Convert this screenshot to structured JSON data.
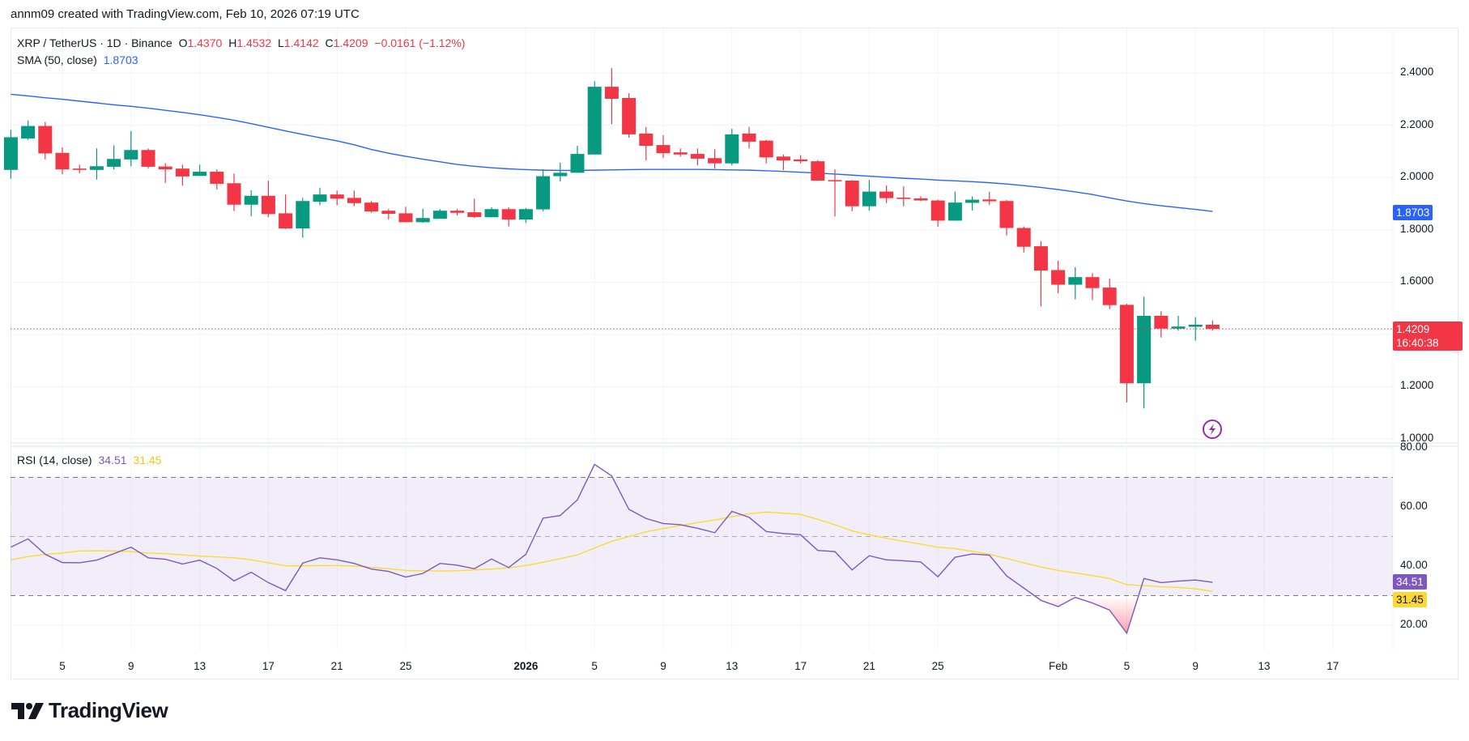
{
  "header": {
    "credit": "annm09 created with TradingView.com, Feb 10, 2026 07:19 UTC"
  },
  "legend": {
    "symbol": "XRP / TetherUS · 1D · Binance",
    "o_label": "O",
    "o": "1.4370",
    "h_label": "H",
    "h": "1.4532",
    "l_label": "L",
    "l": "1.4142",
    "c_label": "C",
    "c": "1.4209",
    "change": "−0.0161 (−1.12%)",
    "sma_label": "SMA (50, close)",
    "sma_value": "1.8703",
    "rsi_label": "RSI (14, close)",
    "rsi_value": "34.51",
    "rsi_ma_value": "31.45"
  },
  "price_tags": {
    "sma": "1.8703",
    "last": "1.4209",
    "countdown": "16:40:38",
    "rsi": "34.51",
    "rsi_ma": "31.45"
  },
  "icons": {
    "alert": "lightning-bolt-icon",
    "logo": "tradingview-logo"
  },
  "logo": {
    "text": "TradingView"
  },
  "colors": {
    "up": "#089981",
    "down": "#f23645",
    "sma": "#2962ff",
    "rsi": "#7e57c2",
    "rsi_ma": "#fdd835",
    "alert": "#9c27b0"
  },
  "chart_data": [
    {
      "type": "candlestick",
      "title": "XRP / TetherUS · 1D · Binance",
      "ylim": [
        1.0,
        2.4
      ],
      "yticks": [
        "2.4000",
        "2.2000",
        "2.0000",
        "1.8000",
        "1.6000",
        "1.2000",
        "1.0000"
      ],
      "xticks": [
        {
          "label": "5",
          "date": "2025-12-05"
        },
        {
          "label": "9",
          "date": "2025-12-09"
        },
        {
          "label": "13",
          "date": "2025-12-13"
        },
        {
          "label": "17",
          "date": "2025-12-17"
        },
        {
          "label": "21",
          "date": "2025-12-21"
        },
        {
          "label": "25",
          "date": "2025-12-25"
        },
        {
          "label": "2026",
          "date": "2026-01-01",
          "bold": true
        },
        {
          "label": "5",
          "date": "2026-01-05"
        },
        {
          "label": "9",
          "date": "2026-01-09"
        },
        {
          "label": "13",
          "date": "2026-01-13"
        },
        {
          "label": "17",
          "date": "2026-01-17"
        },
        {
          "label": "21",
          "date": "2026-01-21"
        },
        {
          "label": "25",
          "date": "2026-01-25"
        },
        {
          "label": "Feb",
          "date": "2026-02-01"
        },
        {
          "label": "5",
          "date": "2026-02-05"
        },
        {
          "label": "9",
          "date": "2026-02-09"
        },
        {
          "label": "13",
          "date": "2026-02-13"
        },
        {
          "label": "17",
          "date": "2026-02-17"
        }
      ],
      "grid": true,
      "start_date": "2025-12-02",
      "ohlc": [
        [
          2.029,
          2.182,
          1.995,
          2.154
        ],
        [
          2.149,
          2.218,
          2.144,
          2.197
        ],
        [
          2.197,
          2.212,
          2.069,
          2.092
        ],
        [
          2.094,
          2.115,
          2.012,
          2.031
        ],
        [
          2.034,
          2.049,
          2.016,
          2.029
        ],
        [
          2.029,
          2.111,
          1.992,
          2.043
        ],
        [
          2.041,
          2.123,
          2.031,
          2.071
        ],
        [
          2.069,
          2.178,
          2.043,
          2.105
        ],
        [
          2.105,
          2.111,
          2.034,
          2.041
        ],
        [
          2.042,
          2.055,
          1.979,
          2.031
        ],
        [
          2.034,
          2.049,
          1.969,
          2.004
        ],
        [
          2.006,
          2.049,
          2.006,
          2.022
        ],
        [
          2.022,
          2.031,
          1.954,
          1.976
        ],
        [
          1.978,
          2.015,
          1.872,
          1.896
        ],
        [
          1.896,
          1.951,
          1.852,
          1.93
        ],
        [
          1.93,
          1.988,
          1.848,
          1.86
        ],
        [
          1.863,
          1.935,
          1.803,
          1.805
        ],
        [
          1.805,
          1.922,
          1.77,
          1.91
        ],
        [
          1.907,
          1.961,
          1.894,
          1.935
        ],
        [
          1.935,
          1.95,
          1.894,
          1.919
        ],
        [
          1.922,
          1.95,
          1.891,
          1.902
        ],
        [
          1.904,
          1.91,
          1.865,
          1.87
        ],
        [
          1.873,
          1.879,
          1.839,
          1.861
        ],
        [
          1.863,
          1.888,
          1.829,
          1.829
        ],
        [
          1.829,
          1.881,
          1.827,
          1.845
        ],
        [
          1.842,
          1.879,
          1.842,
          1.873
        ],
        [
          1.873,
          1.879,
          1.855,
          1.865
        ],
        [
          1.867,
          1.919,
          1.845,
          1.849
        ],
        [
          1.848,
          1.886,
          1.848,
          1.879
        ],
        [
          1.879,
          1.886,
          1.813,
          1.839
        ],
        [
          1.839,
          1.883,
          1.827,
          1.879
        ],
        [
          1.878,
          2.031,
          1.871,
          2.005
        ],
        [
          2.005,
          2.057,
          1.985,
          2.018
        ],
        [
          2.018,
          2.121,
          2.018,
          2.09
        ],
        [
          2.088,
          2.368,
          2.088,
          2.347
        ],
        [
          2.347,
          2.418,
          2.204,
          2.301
        ],
        [
          2.304,
          2.322,
          2.152,
          2.165
        ],
        [
          2.168,
          2.193,
          2.065,
          2.121
        ],
        [
          2.124,
          2.162,
          2.075,
          2.093
        ],
        [
          2.096,
          2.111,
          2.08,
          2.088
        ],
        [
          2.09,
          2.111,
          2.046,
          2.072
        ],
        [
          2.074,
          2.108,
          2.034,
          2.054
        ],
        [
          2.054,
          2.186,
          2.046,
          2.165
        ],
        [
          2.168,
          2.193,
          2.111,
          2.137
        ],
        [
          2.141,
          2.144,
          2.054,
          2.077
        ],
        [
          2.08,
          2.088,
          2.028,
          2.065
        ],
        [
          2.069,
          2.085,
          2.054,
          2.062
        ],
        [
          2.062,
          2.067,
          1.988,
          1.988
        ],
        [
          1.99,
          2.031,
          1.851,
          1.986
        ],
        [
          1.988,
          1.99,
          1.871,
          1.89
        ],
        [
          1.89,
          1.99,
          1.874,
          1.946
        ],
        [
          1.946,
          1.969,
          1.902,
          1.921
        ],
        [
          1.923,
          1.966,
          1.89,
          1.918
        ],
        [
          1.92,
          1.928,
          1.91,
          1.912
        ],
        [
          1.912,
          1.915,
          1.812,
          1.835
        ],
        [
          1.835,
          1.946,
          1.835,
          1.904
        ],
        [
          1.903,
          1.928,
          1.874,
          1.915
        ],
        [
          1.916,
          1.945,
          1.895,
          1.909
        ],
        [
          1.91,
          1.914,
          1.778,
          1.807
        ],
        [
          1.807,
          1.813,
          1.713,
          1.735
        ],
        [
          1.737,
          1.756,
          1.507,
          1.644
        ],
        [
          1.646,
          1.682,
          1.557,
          1.59
        ],
        [
          1.59,
          1.657,
          1.534,
          1.619
        ],
        [
          1.619,
          1.634,
          1.531,
          1.577
        ],
        [
          1.579,
          1.613,
          1.497,
          1.512
        ],
        [
          1.513,
          1.517,
          1.14,
          1.213
        ],
        [
          1.213,
          1.544,
          1.117,
          1.471
        ],
        [
          1.471,
          1.489,
          1.388,
          1.422
        ],
        [
          1.422,
          1.471,
          1.414,
          1.43
        ],
        [
          1.429,
          1.466,
          1.376,
          1.437
        ],
        [
          1.437,
          1.4532,
          1.4142,
          1.4209
        ]
      ],
      "sma": [
        2.318,
        2.312,
        2.305,
        2.299,
        2.292,
        2.285,
        2.278,
        2.272,
        2.265,
        2.257,
        2.249,
        2.24,
        2.23,
        2.219,
        2.206,
        2.192,
        2.178,
        2.165,
        2.152,
        2.14,
        2.125,
        2.107,
        2.093,
        2.081,
        2.07,
        2.06,
        2.05,
        2.043,
        2.037,
        2.033,
        2.03,
        2.028,
        2.027,
        2.027,
        2.028,
        2.029,
        2.03,
        2.031,
        2.031,
        2.031,
        2.031,
        2.03,
        2.029,
        2.028,
        2.026,
        2.023,
        2.02,
        2.017,
        2.013,
        2.009,
        2.005,
        2.001,
        1.997,
        1.994,
        1.99,
        1.987,
        1.984,
        1.98,
        1.975,
        1.969,
        1.962,
        1.954,
        1.945,
        1.935,
        1.922,
        1.91,
        1.9,
        1.892,
        1.885,
        1.878,
        1.8703
      ],
      "last_price": 1.4209
    },
    {
      "type": "line",
      "title": "RSI (14, close)",
      "ylim": [
        10,
        82
      ],
      "yticks": [
        "80.00",
        "60.00",
        "40.00",
        "20.00"
      ],
      "bands": {
        "upper": 70,
        "middle": 50,
        "lower": 30
      },
      "series": [
        {
          "name": "RSI",
          "values": [
            46.4,
            49.2,
            44.0,
            41.2,
            41.1,
            42.0,
            44.2,
            46.4,
            42.8,
            42.3,
            40.7,
            42.0,
            39.2,
            35.0,
            37.9,
            34.4,
            31.7,
            41.0,
            42.8,
            42.1,
            40.9,
            39.0,
            38.2,
            36.3,
            37.5,
            40.9,
            40.3,
            39.1,
            42.4,
            39.5,
            44.0,
            56.2,
            57.1,
            62.4,
            74.4,
            70.5,
            59.2,
            56.1,
            54.4,
            54.0,
            52.8,
            51.3,
            58.5,
            56.5,
            51.7,
            51.0,
            50.6,
            45.3,
            44.9,
            38.7,
            43.5,
            42.1,
            41.8,
            41.4,
            36.4,
            43.0,
            44.1,
            43.7,
            36.7,
            32.6,
            28.4,
            26.3,
            29.4,
            27.5,
            25.1,
            17.3,
            35.8,
            34.4,
            34.9,
            35.3,
            34.51
          ]
        },
        {
          "name": "RSI-based MA",
          "values": [
            42.1,
            43.2,
            44.0,
            44.4,
            45.1,
            45.2,
            45.1,
            44.9,
            44.4,
            44.2,
            43.8,
            43.4,
            43.1,
            42.8,
            42.1,
            41.1,
            40.1,
            40.1,
            40.2,
            40.2,
            40.0,
            39.6,
            39.1,
            38.5,
            38.4,
            38.3,
            38.4,
            38.7,
            39.0,
            39.4,
            40.2,
            41.3,
            42.5,
            43.8,
            46.1,
            48.4,
            50.0,
            51.6,
            52.7,
            53.7,
            54.7,
            55.6,
            56.7,
            57.7,
            58.3,
            57.9,
            57.5,
            55.8,
            54.0,
            51.9,
            50.6,
            49.4,
            48.4,
            47.4,
            46.4,
            45.9,
            45.0,
            44.0,
            42.6,
            41.1,
            39.7,
            38.5,
            37.7,
            36.8,
            35.8,
            33.7,
            33.4,
            33.0,
            32.8,
            32.3,
            31.45
          ]
        }
      ]
    }
  ]
}
